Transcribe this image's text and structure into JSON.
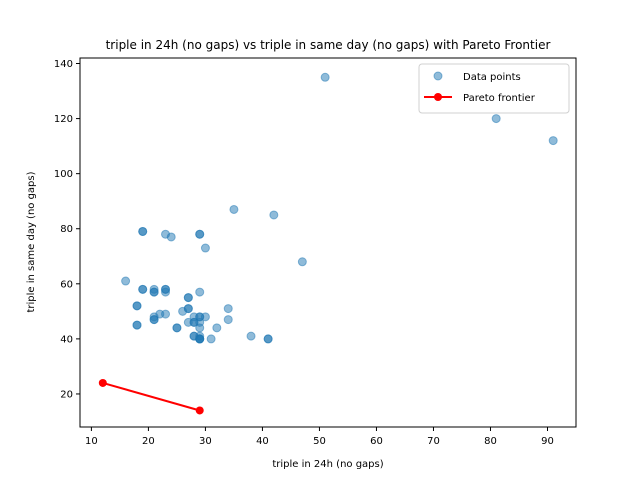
{
  "chart_data": {
    "type": "scatter",
    "title": "triple in 24h (no gaps) vs triple in same day (no gaps) with Pareto Frontier",
    "xlabel": "triple in 24h (no gaps)",
    "ylabel": "triple in same day (no gaps)",
    "xlim": [
      8,
      95
    ],
    "ylim": [
      8,
      142
    ],
    "xticks": [
      10,
      20,
      30,
      40,
      50,
      60,
      70,
      80,
      90
    ],
    "yticks": [
      20,
      40,
      60,
      80,
      100,
      120,
      140
    ],
    "grid": false,
    "legend_position": "top-right",
    "colors": {
      "points": "#1f77b4",
      "frontier": "#ff0000"
    },
    "series": [
      {
        "name": "Data points",
        "kind": "scatter",
        "points": [
          [
            51,
            135
          ],
          [
            81,
            120
          ],
          [
            91,
            112
          ],
          [
            35,
            87
          ],
          [
            42,
            85
          ],
          [
            19,
            79
          ],
          [
            19,
            79
          ],
          [
            23,
            78
          ],
          [
            29,
            78
          ],
          [
            29,
            78
          ],
          [
            24,
            77
          ],
          [
            30,
            73
          ],
          [
            47,
            68
          ],
          [
            16,
            61
          ],
          [
            19,
            58
          ],
          [
            19,
            58
          ],
          [
            21,
            58
          ],
          [
            23,
            58
          ],
          [
            23,
            58
          ],
          [
            23,
            57
          ],
          [
            21,
            57
          ],
          [
            21,
            57
          ],
          [
            29,
            57
          ],
          [
            27,
            55
          ],
          [
            27,
            55
          ],
          [
            18,
            52
          ],
          [
            18,
            52
          ],
          [
            27,
            51
          ],
          [
            27,
            51
          ],
          [
            34,
            51
          ],
          [
            26,
            50
          ],
          [
            22,
            49
          ],
          [
            23,
            49
          ],
          [
            21,
            48
          ],
          [
            28,
            48
          ],
          [
            29,
            48
          ],
          [
            29,
            48
          ],
          [
            30,
            48
          ],
          [
            21,
            47
          ],
          [
            21,
            47
          ],
          [
            34,
            47
          ],
          [
            27,
            46
          ],
          [
            28,
            46
          ],
          [
            28,
            46
          ],
          [
            29,
            46
          ],
          [
            18,
            45
          ],
          [
            18,
            45
          ],
          [
            25,
            44
          ],
          [
            25,
            44
          ],
          [
            29,
            44
          ],
          [
            32,
            44
          ],
          [
            28,
            41
          ],
          [
            28,
            41
          ],
          [
            29,
            41
          ],
          [
            38,
            41
          ],
          [
            29,
            40
          ],
          [
            29,
            40
          ],
          [
            29,
            40
          ],
          [
            29,
            40
          ],
          [
            31,
            40
          ],
          [
            41,
            40
          ],
          [
            41,
            40
          ]
        ]
      },
      {
        "name": "Pareto frontier",
        "kind": "line",
        "points": [
          [
            12,
            24
          ],
          [
            29,
            14
          ]
        ]
      }
    ]
  }
}
